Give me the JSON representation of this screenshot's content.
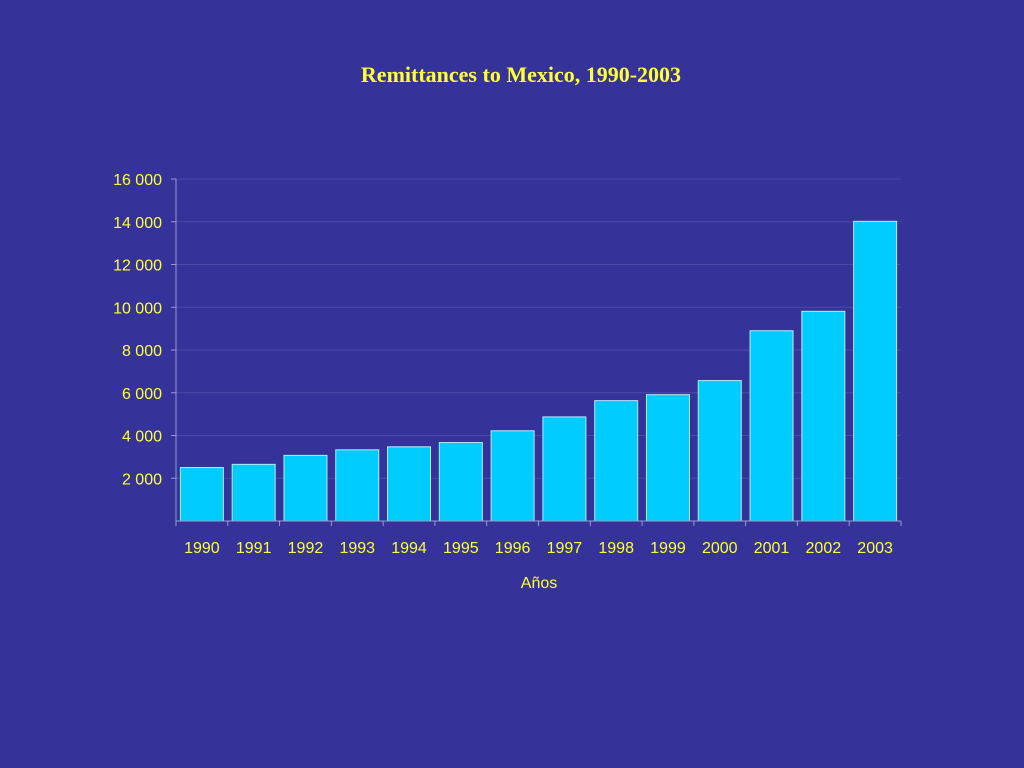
{
  "colors": {
    "background": "#353399",
    "bar_fill": "#00ccff",
    "bar_stroke": "#b5ecff",
    "text": "#ffff33",
    "gridline": "#4a4aa8",
    "axis": "#9a9acc"
  },
  "chart_data": {
    "type": "bar",
    "title": "Remittances to Mexico, 1990-2003",
    "xlabel": "Años",
    "ylabel": "",
    "ylim": [
      0,
      16000
    ],
    "yticks": [
      2000,
      4000,
      6000,
      8000,
      10000,
      12000,
      14000,
      16000
    ],
    "ytick_labels": [
      "2 000",
      "4 000",
      "6 000",
      "8 000",
      "10 000",
      "12 000",
      "14 000",
      "16 000"
    ],
    "grid": true,
    "legend": "none",
    "categories": [
      "1990",
      "1991",
      "1992",
      "1993",
      "1994",
      "1995",
      "1996",
      "1997",
      "1998",
      "1999",
      "2000",
      "2001",
      "2002",
      "2003"
    ],
    "values": [
      2500,
      2650,
      3070,
      3330,
      3470,
      3670,
      4220,
      4870,
      5630,
      5910,
      6570,
      8900,
      9810,
      14020
    ]
  }
}
